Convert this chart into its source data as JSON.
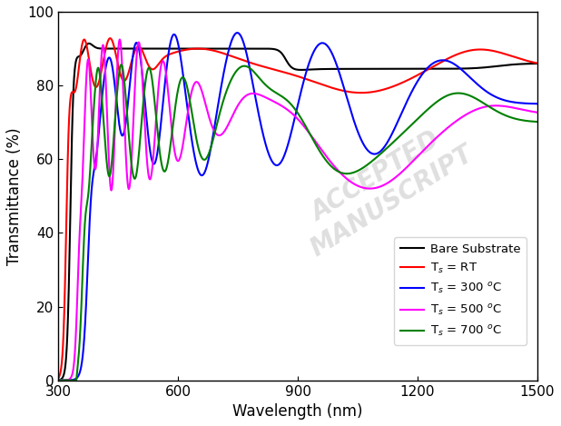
{
  "xlabel": "Wavelength (nm)",
  "ylabel": "Transmittance (%)",
  "xlim": [
    300,
    1500
  ],
  "ylim": [
    0,
    100
  ],
  "xticks": [
    300,
    600,
    900,
    1200,
    1500
  ],
  "yticks": [
    0,
    20,
    40,
    60,
    80,
    100
  ],
  "legend_labels": [
    "Bare Substrate",
    "T$_s$ = RT",
    "T$_s$ = 300 $^o$C",
    "T$_s$ = 500 $^o$C",
    "T$_s$ = 700 $^o$C"
  ],
  "colors": [
    "black",
    "red",
    "blue",
    "magenta",
    "green"
  ],
  "linewidth": 1.5
}
